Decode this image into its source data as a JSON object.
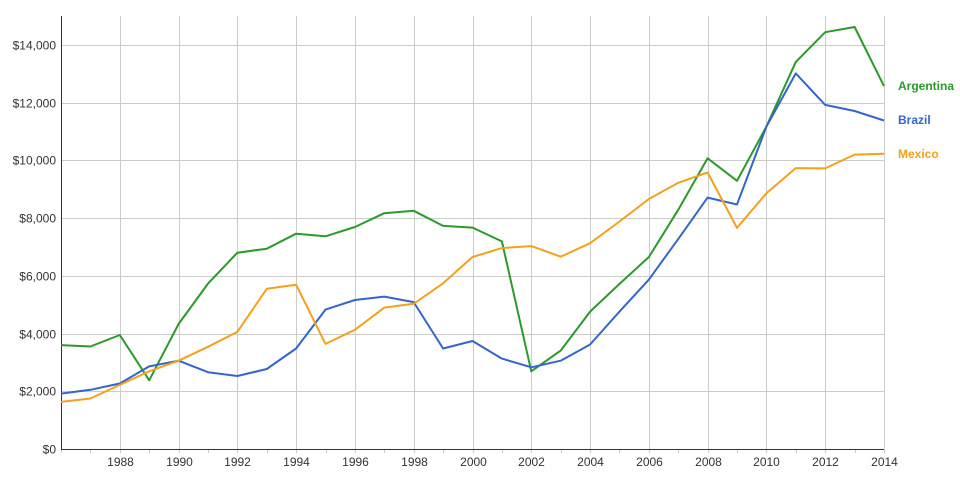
{
  "colors": {
    "grid": "#cccccc",
    "axis": "#333333",
    "tick_text": "#333333",
    "Argentina": "#2a9a2a",
    "Brazil": "#3366cc",
    "Mexico": "#f4a11c"
  },
  "chart_data": {
    "type": "line",
    "title": "",
    "xlabel": "",
    "ylabel": "",
    "grid": true,
    "legend": "right (labels at line ends)",
    "xlim": [
      1986,
      2014
    ],
    "ylim": [
      0,
      15000
    ],
    "x": [
      1986,
      1987,
      1988,
      1989,
      1990,
      1991,
      1992,
      1993,
      1994,
      1995,
      1996,
      1997,
      1998,
      1999,
      2000,
      2001,
      2002,
      2003,
      2004,
      2005,
      2006,
      2007,
      2008,
      2009,
      2010,
      2011,
      2012,
      2013,
      2014
    ],
    "x_ticks": [
      "1988",
      "1990",
      "1992",
      "1994",
      "1996",
      "1998",
      "2000",
      "2002",
      "2004",
      "2006",
      "2008",
      "2010",
      "2012",
      "2014"
    ],
    "x_tick_values": [
      1988,
      1990,
      1992,
      1994,
      1996,
      1998,
      2000,
      2002,
      2004,
      2006,
      2008,
      2010,
      2012,
      2014
    ],
    "y_ticks": [
      "$0",
      "$2,000",
      "$4,000",
      "$6,000",
      "$8,000",
      "$10,000",
      "$12,000",
      "$14,000"
    ],
    "y_tick_values": [
      0,
      2000,
      4000,
      6000,
      8000,
      10000,
      12000,
      14000
    ],
    "series": [
      {
        "name": "Argentina",
        "values": [
          3600,
          3550,
          3950,
          2380,
          4330,
          5730,
          6800,
          6940,
          7460,
          7370,
          7690,
          8170,
          8250,
          7730,
          7670,
          7190,
          2690,
          3410,
          4760,
          5720,
          6650,
          8290,
          10070,
          9290,
          11170,
          13410,
          14440,
          14620,
          12570
        ]
      },
      {
        "name": "Brazil",
        "values": [
          1920,
          2050,
          2270,
          2860,
          3060,
          2660,
          2530,
          2770,
          3480,
          4830,
          5160,
          5280,
          5090,
          3480,
          3740,
          3130,
          2830,
          3060,
          3620,
          4760,
          5870,
          7280,
          8710,
          8470,
          11170,
          13010,
          11920,
          11710,
          11380
        ]
      },
      {
        "name": "Mexico",
        "values": [
          1630,
          1750,
          2220,
          2690,
          3060,
          3540,
          4060,
          5550,
          5690,
          3640,
          4130,
          4900,
          5030,
          5740,
          6650,
          6960,
          7030,
          6660,
          7130,
          7880,
          8660,
          9220,
          9580,
          7660,
          8860,
          9730,
          9720,
          10200,
          10230
        ]
      }
    ]
  }
}
